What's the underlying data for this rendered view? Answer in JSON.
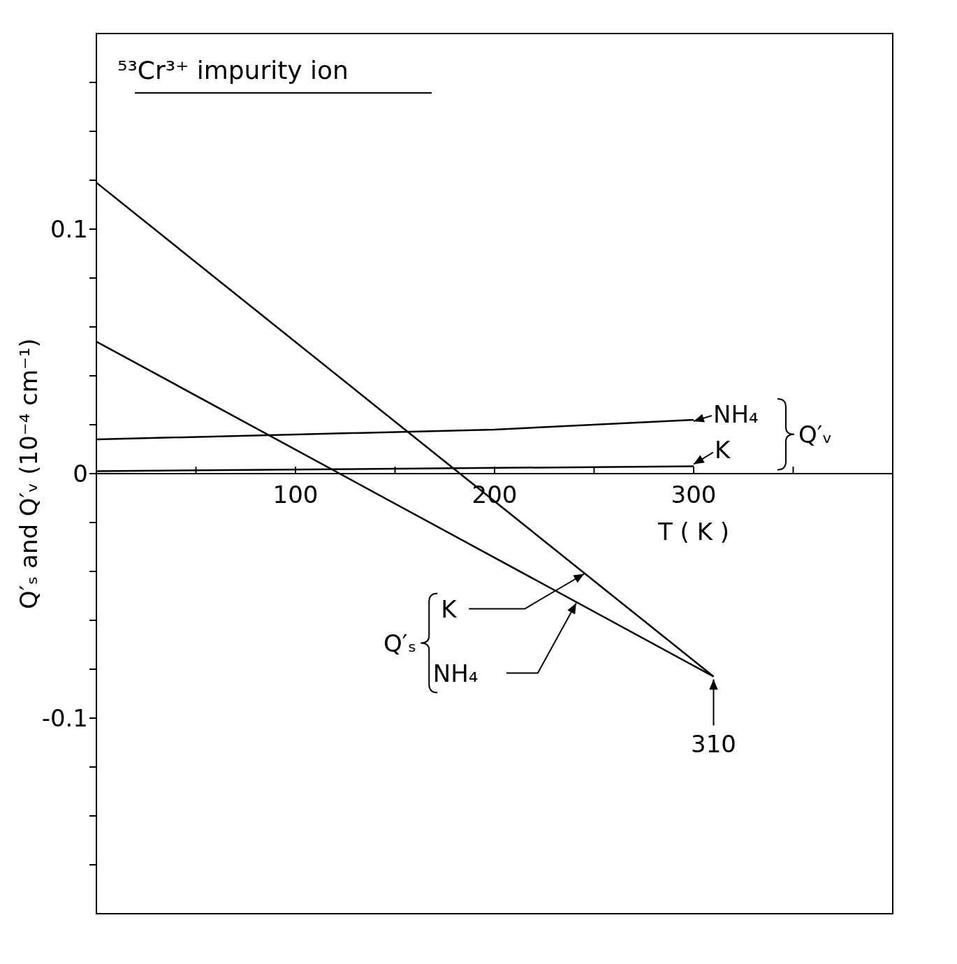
{
  "chart_data": {
    "type": "line",
    "title": "⁵³Cr³⁺ impurity ion",
    "xlabel": "T ( K )",
    "ylabel": "Q′ₛ and Q′ᵥ (10⁻⁴ cm⁻¹)",
    "xlim": [
      0,
      400
    ],
    "ylim": [
      -0.18,
      0.18
    ],
    "xticks": [
      {
        "value": 50,
        "label": null
      },
      100,
      {
        "value": 150,
        "label": null
      },
      200,
      {
        "value": 250,
        "label": null
      },
      300,
      {
        "value": 350,
        "label": null
      }
    ],
    "yticks": [
      {
        "value": -0.16,
        "label": null
      },
      {
        "value": -0.14,
        "label": null
      },
      {
        "value": -0.12,
        "label": null
      },
      -0.1,
      {
        "value": -0.08,
        "label": null
      },
      {
        "value": -0.06,
        "label": null
      },
      {
        "value": -0.04,
        "label": null
      },
      {
        "value": -0.02,
        "label": null
      },
      0,
      {
        "value": 0.02,
        "label": null
      },
      {
        "value": 0.04,
        "label": null
      },
      {
        "value": 0.06,
        "label": null
      },
      {
        "value": 0.08,
        "label": null
      },
      0.1,
      {
        "value": 0.12,
        "label": null
      },
      {
        "value": 0.14,
        "label": null
      },
      {
        "value": 0.16,
        "label": null
      }
    ],
    "series": [
      {
        "color": "#000000",
        "x": [
          0,
          310
        ],
        "values": [
          0.119,
          -0.083
        ]
      },
      {
        "color": "#000000",
        "x": [
          0,
          310
        ],
        "values": [
          0.054,
          -0.083
        ]
      },
      {
        "color": "#000000",
        "x": [
          0,
          100,
          200,
          300
        ],
        "values": [
          0.014,
          0.016,
          0.018,
          0.022
        ]
      },
      {
        "color": "#000000",
        "x": [
          0,
          300
        ],
        "values": [
          0.001,
          0.003
        ]
      }
    ],
    "annotations": [
      {
        "text": "NH₄",
        "x": 300,
        "y": 0.022
      },
      {
        "text": "K",
        "x": 300,
        "y": 0.003
      },
      "Q′ᵥ",
      {
        "text": "310",
        "x": 310,
        "y": -0.083
      },
      {
        "text": "K",
        "x": 245,
        "y": -0.041
      },
      {
        "text": "NH₄",
        "x": 241,
        "y": -0.053
      },
      "Q′ₛ"
    ],
    "marker": "none",
    "line_style": "solid"
  }
}
